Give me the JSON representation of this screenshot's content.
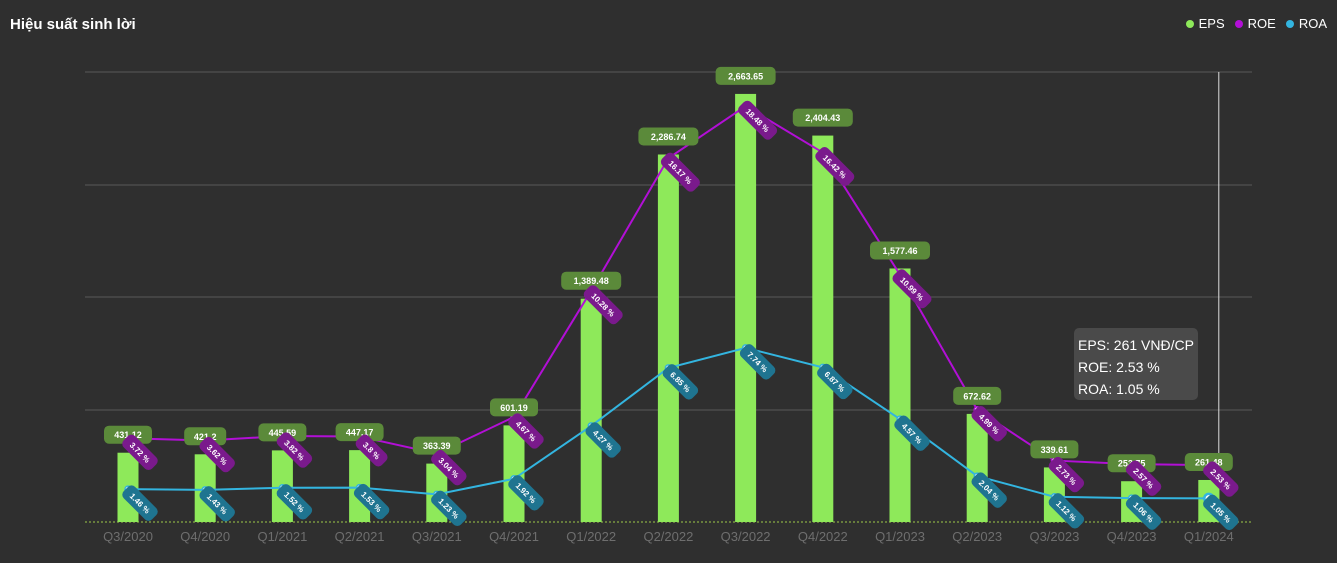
{
  "title": "Hiệu suất sinh lời",
  "legend": [
    {
      "name": "EPS",
      "color": "#8ee95a"
    },
    {
      "name": "ROE",
      "color": "#b20fd6"
    },
    {
      "name": "ROA",
      "color": "#33b5e0"
    }
  ],
  "tooltip": {
    "eps": "EPS: 261 VNĐ/CP",
    "roe": "ROE: 2.53 %",
    "roa": "ROA: 1.05 %"
  },
  "chart_data": {
    "type": "bar",
    "categories": [
      "Q3/2020",
      "Q4/2020",
      "Q1/2021",
      "Q2/2021",
      "Q3/2021",
      "Q4/2021",
      "Q1/2022",
      "Q2/2022",
      "Q3/2022",
      "Q4/2022",
      "Q1/2023",
      "Q2/2023",
      "Q3/2023",
      "Q4/2023",
      "Q1/2024"
    ],
    "series": [
      {
        "name": "EPS",
        "type": "bar",
        "color": "#8ee95a",
        "values": [
          431.12,
          421.2,
          445.59,
          447.17,
          363.39,
          601.19,
          1389.48,
          2286.74,
          2663.65,
          2404.43,
          1577.46,
          672.62,
          339.61,
          253.75,
          261.48
        ],
        "labels": [
          "431.12",
          "421.2",
          "445.59",
          "447.17",
          "363.39",
          "601.19",
          "1,389.48",
          "2,286.74",
          "2,663.65",
          "2,404.43",
          "1,577.46",
          "672.62",
          "339.61",
          "253.75",
          "261.48"
        ]
      },
      {
        "name": "ROE",
        "type": "line",
        "color": "#b20fd6",
        "values": [
          3.72,
          3.62,
          3.82,
          3.8,
          3.04,
          4.67,
          10.28,
          16.17,
          18.48,
          16.42,
          10.99,
          4.99,
          2.73,
          2.57,
          2.53
        ],
        "labels": [
          "3.72 %",
          "3.62 %",
          "3.82 %",
          "3.8 %",
          "3.04 %",
          "4.67 %",
          "10.28 %",
          "16.17 %",
          "18.48 %",
          "16.42 %",
          "10.99 %",
          "4.99 %",
          "2.73 %",
          "2.57 %",
          "2.53 %"
        ]
      },
      {
        "name": "ROA",
        "type": "line",
        "color": "#33b5e0",
        "values": [
          1.46,
          1.43,
          1.52,
          1.53,
          1.23,
          1.92,
          4.27,
          6.85,
          7.74,
          6.87,
          4.57,
          2.04,
          1.12,
          1.06,
          1.05
        ],
        "labels": [
          "1.46 %",
          "1.43 %",
          "1.52 %",
          "1.53 %",
          "1.23 %",
          "1.92 %",
          "4.27 %",
          "6.85 %",
          "7.74 %",
          "6.87 %",
          "4.57 %",
          "2.04 %",
          "1.12 %",
          "1.06 %",
          "1.05 %"
        ]
      }
    ],
    "eps_axis_range": [
      0,
      2800
    ],
    "pct_axis_range": [
      0,
      20
    ],
    "grid": true,
    "legend_position": "top-right",
    "highlighted_category": "Q1/2024"
  }
}
